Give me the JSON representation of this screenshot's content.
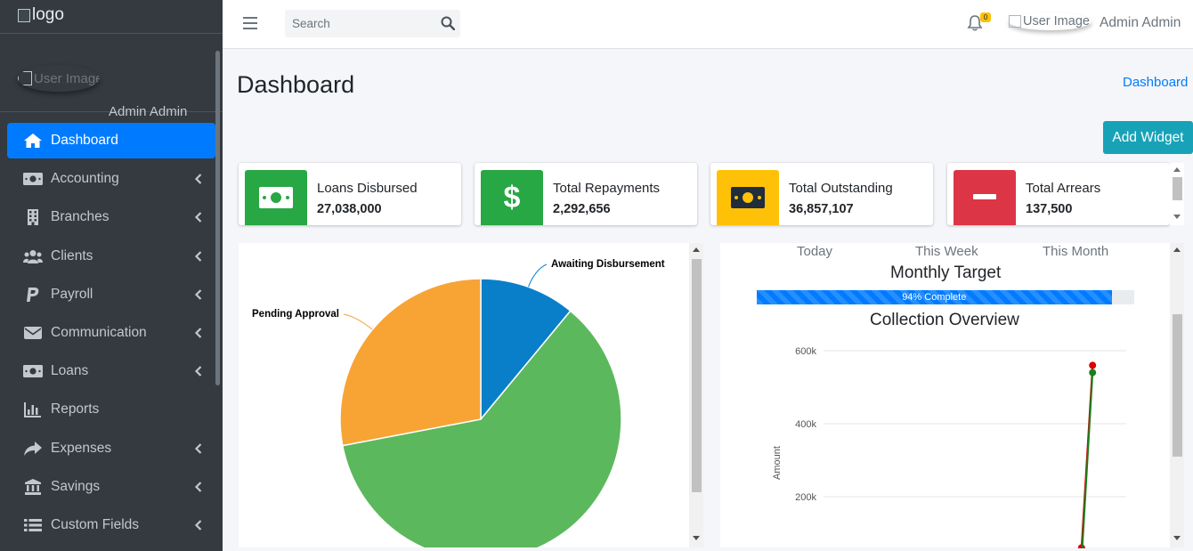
{
  "brand": {
    "logo_alt": "logo"
  },
  "user": {
    "image_alt": "User Image",
    "name": "Admin Admin"
  },
  "sidebar": {
    "items": [
      {
        "label": "Dashboard",
        "icon": "home-icon",
        "active": true,
        "chevron": false
      },
      {
        "label": "Accounting",
        "icon": "money-bill-icon",
        "active": false,
        "chevron": true
      },
      {
        "label": "Branches",
        "icon": "building-icon",
        "active": false,
        "chevron": true
      },
      {
        "label": "Clients",
        "icon": "users-icon",
        "active": false,
        "chevron": true
      },
      {
        "label": "Payroll",
        "icon": "paypal-icon",
        "active": false,
        "chevron": true
      },
      {
        "label": "Communication",
        "icon": "envelope-icon",
        "active": false,
        "chevron": true
      },
      {
        "label": "Loans",
        "icon": "money-bill-icon",
        "active": false,
        "chevron": true
      },
      {
        "label": "Reports",
        "icon": "chart-bar-icon",
        "active": false,
        "chevron": false
      },
      {
        "label": "Expenses",
        "icon": "share-icon",
        "active": false,
        "chevron": true
      },
      {
        "label": "Savings",
        "icon": "bank-icon",
        "active": false,
        "chevron": true
      },
      {
        "label": "Custom Fields",
        "icon": "list-icon",
        "active": false,
        "chevron": true
      }
    ]
  },
  "header": {
    "search_placeholder": "Search",
    "notification_count": "0",
    "user_image_alt": "User Image",
    "user_name": "Admin Admin"
  },
  "page": {
    "title": "Dashboard",
    "breadcrumb": "Dashboard",
    "add_widget_label": "Add Widget"
  },
  "stats": [
    {
      "label": "Loans Disbursed",
      "value": "27,038,000",
      "color": "#28a745",
      "icon": "money-bill-icon"
    },
    {
      "label": "Total Repayments",
      "value": "2,292,656",
      "color": "#28a745",
      "icon": "dollar-icon"
    },
    {
      "label": "Total Outstanding",
      "value": "36,857,107",
      "color": "#ffc107",
      "icon": "money-bill-icon"
    },
    {
      "label": "Total Arrears",
      "value": "137,500",
      "color": "#dc3545",
      "icon": "minus-icon"
    }
  ],
  "collection": {
    "tabs": [
      "Today",
      "This Week",
      "This Month"
    ],
    "monthly_target_title": "Monthly Target",
    "progress_percent": 94,
    "progress_label": "94% Complete",
    "overview_title": "Collection Overview"
  },
  "chart_data": [
    {
      "type": "pie",
      "slices": [
        {
          "label": "Awaiting Disbursement",
          "value": 11,
          "color": "#0a7fc9"
        },
        {
          "label": "",
          "value": 61,
          "color": "#5cb85c"
        },
        {
          "label": "Pending Approval",
          "value": 28,
          "color": "#f7a435"
        }
      ]
    },
    {
      "type": "line",
      "ylabel": "Amount",
      "yticks": [
        "600k",
        "400k",
        "200k"
      ],
      "ytick_values": [
        600000,
        400000,
        200000
      ],
      "ylim": [
        0,
        600000
      ],
      "series": [
        {
          "color": "#dc0000",
          "values": [
            0,
            0,
            0,
            0,
            0,
            0,
            0,
            0,
            0,
            0,
            0,
            0,
            0,
            0,
            0,
            0,
            0,
            0,
            0,
            0,
            0,
            0,
            0,
            0,
            0,
            0,
            0,
            0,
            0,
            0,
            0,
            0,
            0,
            0,
            0,
            0,
            0,
            0,
            0,
            0,
            0,
            0,
            0,
            0,
            0,
            0,
            0,
            0,
            0,
            0,
            0,
            0,
            0,
            0,
            0,
            0,
            0,
            0,
            0,
            40000,
            60000,
            560000
          ]
        },
        {
          "color": "#1a7f1a",
          "values": [
            0,
            0,
            0,
            0,
            0,
            0,
            0,
            0,
            0,
            0,
            0,
            0,
            0,
            0,
            0,
            0,
            0,
            0,
            0,
            0,
            0,
            0,
            0,
            0,
            0,
            0,
            0,
            0,
            0,
            0,
            0,
            0,
            0,
            0,
            0,
            0,
            0,
            0,
            0,
            0,
            0,
            0,
            0,
            0,
            0,
            0,
            0,
            0,
            0,
            0,
            0,
            0,
            0,
            0,
            0,
            0,
            0,
            0,
            0,
            0,
            0,
            540000
          ]
        }
      ]
    }
  ]
}
